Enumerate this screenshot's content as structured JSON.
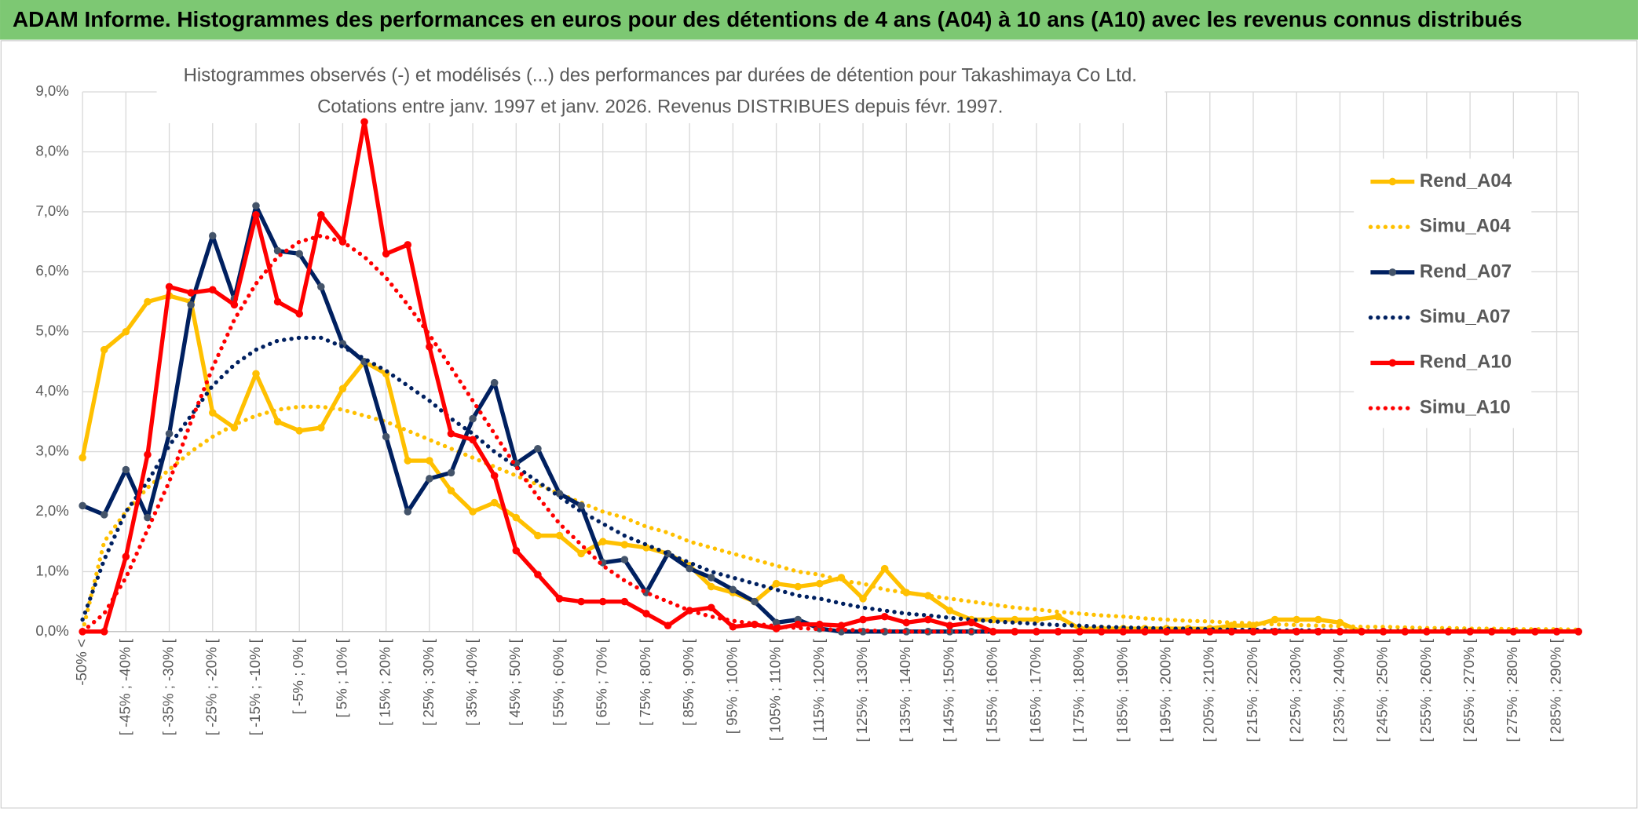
{
  "header_title": "ADAM Informe. Histogrammes des performances en euros pour des détentions de 4 ans (A04) à 10 ans (A10) avec les revenus connus distribués",
  "chart_data": {
    "type": "line",
    "title": "Histogrammes observés (-) et modélisés (...) des performances par durées de détention pour Takashimaya Co Ltd.",
    "subtitle": "Cotations entre janv. 1997 et janv. 2026. Revenus DISTRIBUES depuis févr. 1997.",
    "categories": [
      "-50% <",
      null,
      "[ -45% ; -40% [",
      null,
      "[ -35% ; -30% [",
      null,
      "[ -25% ; -20% [",
      null,
      "[ -15% ; -10% [",
      null,
      "[ -5% ; 0% [",
      null,
      "[ 5% ; 10% [",
      null,
      "[ 15% ; 20% [",
      null,
      "[ 25% ; 30% [",
      null,
      "[ 35% ; 40% [",
      null,
      "[ 45% ; 50% [",
      null,
      "[ 55% ; 60% [",
      null,
      "[ 65% ; 70% [",
      null,
      "[ 75% ; 80% [",
      null,
      "[ 85% ; 90% [",
      null,
      "[ 95% ; 100% [",
      null,
      "[ 105% ; 110% [",
      null,
      "[ 115% ; 120% [",
      null,
      "[ 125% ; 130% [",
      null,
      "[ 135% ; 140% [",
      null,
      "[ 145% ; 150% [",
      null,
      "[ 155% ; 160% [",
      null,
      "[ 165% ; 170% [",
      null,
      "[ 175% ; 180% [",
      null,
      "[ 185% ; 190% [",
      null,
      "[ 195% ; 200% [",
      null,
      "[ 205% ; 210% [",
      null,
      "[ 215% ; 220% [",
      null,
      "[ 225% ; 230% [",
      null,
      "[ 235% ; 240% [",
      null,
      "[ 245% ; 250% [",
      null,
      "[ 255% ; 260% [",
      null,
      "[ 265% ; 270% [",
      null,
      "[ 275% ; 280% [",
      null,
      "[ 285% ; 290% [",
      null
    ],
    "series": [
      {
        "name": "Rend_A04",
        "color": "#FFC000",
        "marker_color": "#FFC000",
        "style": "solid",
        "values": [
          2.9,
          4.7,
          5.0,
          5.5,
          5.6,
          5.5,
          3.65,
          3.4,
          4.3,
          3.5,
          3.35,
          3.4,
          4.05,
          4.5,
          4.3,
          2.85,
          2.85,
          2.35,
          2.0,
          2.15,
          1.9,
          1.6,
          1.6,
          1.3,
          1.5,
          1.45,
          1.4,
          1.3,
          1.1,
          0.75,
          0.65,
          0.5,
          0.8,
          0.75,
          0.8,
          0.9,
          0.55,
          1.05,
          0.65,
          0.6,
          0.35,
          0.2,
          0.2,
          0.2,
          0.2,
          0.25,
          0.05,
          0.05,
          0.05,
          0.05,
          0.05,
          0.05,
          0.05,
          0.1,
          0.1,
          0.2,
          0.2,
          0.2,
          0.15,
          0,
          0,
          0,
          0,
          0,
          0,
          0,
          0,
          0,
          0,
          0
        ]
      },
      {
        "name": "Simu_A04",
        "color": "#FFC000",
        "style": "dotted",
        "values": [
          0,
          1.5,
          2.0,
          2.4,
          2.7,
          3.0,
          3.25,
          3.45,
          3.6,
          3.7,
          3.75,
          3.75,
          3.7,
          3.6,
          3.5,
          3.35,
          3.2,
          3.05,
          2.9,
          2.75,
          2.6,
          2.45,
          2.3,
          2.15,
          2.0,
          1.9,
          1.75,
          1.65,
          1.5,
          1.4,
          1.3,
          1.2,
          1.1,
          1.0,
          0.95,
          0.85,
          0.8,
          0.7,
          0.65,
          0.6,
          0.55,
          0.5,
          0.45,
          0.4,
          0.37,
          0.33,
          0.3,
          0.27,
          0.25,
          0.22,
          0.2,
          0.18,
          0.17,
          0.15,
          0.14,
          0.12,
          0.11,
          0.1,
          0.09,
          0.08,
          0.08,
          0.07,
          0.06,
          0.06,
          0.05,
          0.05,
          0.04,
          0.04,
          0.04,
          0.03
        ]
      },
      {
        "name": "Rend_A07",
        "color": "#002060",
        "marker_color": "#44546A",
        "style": "solid",
        "values": [
          2.1,
          1.95,
          2.7,
          1.9,
          3.3,
          5.45,
          6.6,
          5.55,
          7.1,
          6.35,
          6.3,
          5.75,
          4.8,
          4.5,
          3.25,
          2.0,
          2.55,
          2.65,
          3.55,
          4.15,
          2.8,
          3.05,
          2.3,
          2.1,
          1.15,
          1.2,
          0.65,
          1.3,
          1.05,
          0.9,
          0.7,
          0.5,
          0.15,
          0.2,
          0.05,
          0,
          0,
          0,
          0,
          0,
          0,
          0,
          0,
          0,
          0,
          0,
          0,
          0,
          0,
          0,
          0,
          0,
          0,
          0,
          0,
          0,
          0,
          0,
          0,
          0,
          0,
          0,
          0,
          0,
          0,
          0,
          0,
          0,
          0,
          0
        ]
      },
      {
        "name": "Simu_A07",
        "color": "#002060",
        "style": "dotted",
        "values": [
          0.2,
          1.2,
          2.0,
          2.5,
          3.1,
          3.6,
          4.1,
          4.45,
          4.7,
          4.85,
          4.9,
          4.9,
          4.75,
          4.55,
          4.35,
          4.1,
          3.85,
          3.55,
          3.3,
          3.0,
          2.75,
          2.5,
          2.25,
          2.0,
          1.8,
          1.6,
          1.45,
          1.3,
          1.15,
          1.0,
          0.9,
          0.8,
          0.7,
          0.6,
          0.55,
          0.47,
          0.4,
          0.35,
          0.3,
          0.27,
          0.23,
          0.2,
          0.17,
          0.15,
          0.13,
          0.11,
          0.1,
          0.08,
          0.07,
          0.06,
          0.05,
          0.05,
          0.04,
          0.03,
          0.03,
          0.02,
          0.02,
          0.02,
          0.01,
          0.01,
          0.01,
          0.01,
          0.01,
          0.01,
          0.01,
          0,
          0,
          0,
          0,
          0
        ]
      },
      {
        "name": "Rend_A10",
        "color": "#FF0000",
        "marker_color": "#FF0000",
        "style": "solid",
        "values": [
          0,
          0,
          1.25,
          2.95,
          5.75,
          5.65,
          5.7,
          5.45,
          6.95,
          5.5,
          5.3,
          6.95,
          6.5,
          8.5,
          6.3,
          6.45,
          4.75,
          3.3,
          3.2,
          2.6,
          1.35,
          0.95,
          0.55,
          0.5,
          0.5,
          0.5,
          0.3,
          0.1,
          0.35,
          0.4,
          0.08,
          0.12,
          0.05,
          0.12,
          0.12,
          0.1,
          0.2,
          0.25,
          0.15,
          0.2,
          0.1,
          0.15,
          0,
          0,
          0,
          0,
          0,
          0,
          0,
          0,
          0,
          0,
          0,
          0,
          0,
          0,
          0,
          0,
          0,
          0,
          0,
          0,
          0,
          0,
          0,
          0,
          0,
          0,
          0,
          0
        ]
      },
      {
        "name": "Simu_A10",
        "color": "#FF0000",
        "style": "dotted",
        "values": [
          0,
          0.3,
          0.9,
          1.7,
          2.5,
          3.5,
          4.4,
          5.2,
          5.8,
          6.25,
          6.5,
          6.6,
          6.5,
          6.25,
          5.9,
          5.45,
          4.95,
          4.4,
          3.85,
          3.3,
          2.75,
          2.25,
          1.8,
          1.45,
          1.1,
          0.85,
          0.65,
          0.5,
          0.35,
          0.25,
          0.18,
          0.13,
          0.09,
          0.06,
          0.04,
          0.03,
          0.02,
          0.01,
          0,
          0,
          0,
          0,
          0,
          0,
          0,
          0,
          0,
          0,
          0,
          0,
          0,
          0,
          0,
          0,
          0,
          0,
          0,
          0,
          0,
          0,
          0,
          0,
          0,
          0,
          0,
          0,
          0,
          0,
          0,
          0
        ]
      }
    ],
    "ylim": [
      0,
      9
    ],
    "yticks": [
      {
        "value": 0,
        "label": "0,0%"
      },
      {
        "value": 1,
        "label": "1,0%"
      },
      {
        "value": 2,
        "label": "2,0%"
      },
      {
        "value": 3,
        "label": "3,0%"
      },
      {
        "value": 4,
        "label": "4,0%"
      },
      {
        "value": 5,
        "label": "5,0%"
      },
      {
        "value": 6,
        "label": "6,0%"
      },
      {
        "value": 7,
        "label": "7,0%"
      },
      {
        "value": 8,
        "label": "8,0%"
      },
      {
        "value": 9,
        "label": "9,0%"
      }
    ],
    "grid": true,
    "legend": "right"
  }
}
